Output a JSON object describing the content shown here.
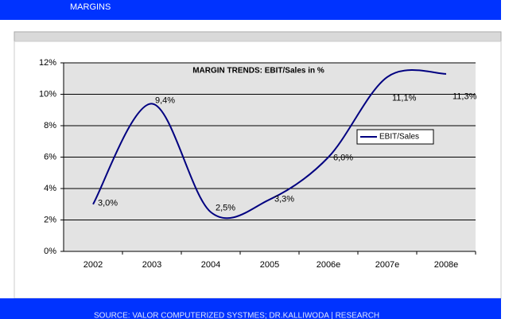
{
  "header": {
    "title": "MARGINS"
  },
  "footer": {
    "source": "SOURCE: VALOR COMPUTERIZED SYSTMES; DR.KALLIWODA | RESEARCH"
  },
  "chart_data": {
    "type": "line",
    "title": "MARGIN TRENDS: EBIT/Sales in  %",
    "categories": [
      "2002",
      "2003",
      "2004",
      "2005",
      "2006e",
      "2007e",
      "2008e"
    ],
    "series": [
      {
        "name": "EBIT/Sales",
        "color": "#000080",
        "values": [
          3.0,
          9.4,
          2.5,
          3.3,
          6.0,
          11.1,
          11.3
        ],
        "value_labels": [
          "3,0%",
          "9,4%",
          "2,5%",
          "3,3%",
          "6,0%",
          "11,1%",
          "11,3%"
        ]
      }
    ],
    "ylim": [
      0,
      12
    ],
    "yticks": [
      {
        "value": 0,
        "label": "0%"
      },
      {
        "value": 2,
        "label": "2%"
      },
      {
        "value": 4,
        "label": "4%"
      },
      {
        "value": 6,
        "label": "6%"
      },
      {
        "value": 8,
        "label": "8%"
      },
      {
        "value": 10,
        "label": "10%"
      },
      {
        "value": 12,
        "label": "12%"
      }
    ],
    "grid": true,
    "smooth": true,
    "legend": "right"
  }
}
